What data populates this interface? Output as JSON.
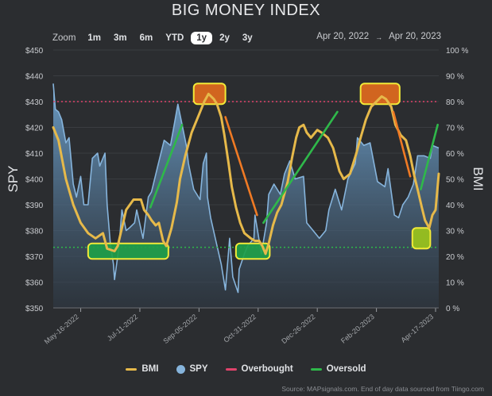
{
  "title": "BIG MONEY INDEX",
  "zoom": {
    "label": "Zoom",
    "buttons": [
      "1m",
      "3m",
      "6m",
      "YTD",
      "1y",
      "2y",
      "3y"
    ],
    "active": "1y"
  },
  "range": {
    "from": "Apr 20, 2022",
    "arrow": "→",
    "to": "Apr 20, 2023"
  },
  "legend": [
    {
      "label": "BMI",
      "color": "#e6b94a",
      "shape": "line"
    },
    {
      "label": "SPY",
      "color": "#86b4dc",
      "shape": "dot"
    },
    {
      "label": "Overbought",
      "color": "#e0436b",
      "shape": "line"
    },
    {
      "label": "Oversold",
      "color": "#2fb84a",
      "shape": "line"
    }
  ],
  "source": "Source: MAPsignals.com. End of day data sourced from Tiingo.com",
  "colors": {
    "bmi": "#e6b94a",
    "spy_fill": "#6fa3cf",
    "spy_line": "#86b4dc",
    "overbought": "#e0436b",
    "oversold": "#2fb84a",
    "annot_orange": "#e06a1e",
    "annot_green": "#1fa04a",
    "annot_lime": "#9bc41c",
    "annot_border": "#f2ea38",
    "trend_green": "#2fb84a",
    "trend_orange": "#f07a24"
  },
  "chart_data": {
    "type": "line",
    "title": "BIG MONEY INDEX",
    "x_range": [
      "2022-04-20",
      "2023-04-20"
    ],
    "x_ticks": [
      "May-16-2022",
      "Jul-11-2022",
      "Sep-05-2022",
      "Oct-31-2022",
      "Dec-26-2022",
      "Feb-20-2023",
      "Apr-17-2023"
    ],
    "left_axis": {
      "label": "SPY",
      "range": [
        350,
        450
      ],
      "ticks": [
        "$350",
        "$360",
        "$370",
        "$380",
        "$390",
        "$400",
        "$410",
        "$420",
        "$430",
        "$440",
        "$450"
      ]
    },
    "right_axis": {
      "label": "BMI",
      "range": [
        0,
        100
      ],
      "ticks": [
        "0 %",
        "10 %",
        "20 %",
        "30 %",
        "40 %",
        "50 %",
        "60 %",
        "70 %",
        "80 %",
        "90 %",
        "100 %"
      ]
    },
    "reference_lines": [
      {
        "name": "Overbought",
        "value": 80
      },
      {
        "name": "Oversold",
        "value": 23.5
      }
    ],
    "series": [
      {
        "name": "SPY",
        "axis": "left",
        "points": [
          [
            "2022-04-20",
            437
          ],
          [
            "2022-04-22",
            427
          ],
          [
            "2022-04-25",
            426
          ],
          [
            "2022-04-28",
            423
          ],
          [
            "2022-05-02",
            414
          ],
          [
            "2022-05-05",
            416
          ],
          [
            "2022-05-09",
            398
          ],
          [
            "2022-05-12",
            393
          ],
          [
            "2022-05-16",
            401
          ],
          [
            "2022-05-19",
            390
          ],
          [
            "2022-05-23",
            390
          ],
          [
            "2022-05-27",
            408
          ],
          [
            "2022-06-01",
            410
          ],
          [
            "2022-06-03",
            405
          ],
          [
            "2022-06-08",
            410
          ],
          [
            "2022-06-10",
            390
          ],
          [
            "2022-06-13",
            375
          ],
          [
            "2022-06-16",
            367
          ],
          [
            "2022-06-17",
            361
          ],
          [
            "2022-06-21",
            373
          ],
          [
            "2022-06-24",
            388
          ],
          [
            "2022-06-28",
            380
          ],
          [
            "2022-07-01",
            381
          ],
          [
            "2022-07-06",
            383
          ],
          [
            "2022-07-08",
            388
          ],
          [
            "2022-07-14",
            377
          ],
          [
            "2022-07-19",
            393
          ],
          [
            "2022-07-22",
            395
          ],
          [
            "2022-07-28",
            405
          ],
          [
            "2022-08-03",
            415
          ],
          [
            "2022-08-09",
            413
          ],
          [
            "2022-08-16",
            429
          ],
          [
            "2022-08-19",
            423
          ],
          [
            "2022-08-24",
            413
          ],
          [
            "2022-08-26",
            406
          ],
          [
            "2022-08-31",
            396
          ],
          [
            "2022-09-06",
            392
          ],
          [
            "2022-09-09",
            406
          ],
          [
            "2022-09-12",
            410
          ],
          [
            "2022-09-13",
            393
          ],
          [
            "2022-09-16",
            385
          ],
          [
            "2022-09-21",
            376
          ],
          [
            "2022-09-26",
            367
          ],
          [
            "2022-09-30",
            357
          ],
          [
            "2022-10-04",
            377
          ],
          [
            "2022-10-07",
            362
          ],
          [
            "2022-10-12",
            356
          ],
          [
            "2022-10-13",
            365
          ],
          [
            "2022-10-18",
            371
          ],
          [
            "2022-10-21",
            374
          ],
          [
            "2022-10-27",
            377
          ],
          [
            "2022-10-28",
            386
          ],
          [
            "2022-11-03",
            371
          ],
          [
            "2022-11-08",
            383
          ],
          [
            "2022-11-10",
            394
          ],
          [
            "2022-11-15",
            398
          ],
          [
            "2022-11-21",
            394
          ],
          [
            "2022-11-25",
            402
          ],
          [
            "2022-11-30",
            407
          ],
          [
            "2022-12-05",
            400
          ],
          [
            "2022-12-13",
            401
          ],
          [
            "2022-12-16",
            383
          ],
          [
            "2022-12-22",
            380
          ],
          [
            "2022-12-28",
            377
          ],
          [
            "2023-01-03",
            380
          ],
          [
            "2023-01-06",
            388
          ],
          [
            "2023-01-12",
            396
          ],
          [
            "2023-01-18",
            388
          ],
          [
            "2023-01-24",
            400
          ],
          [
            "2023-01-31",
            406
          ],
          [
            "2023-02-02",
            416
          ],
          [
            "2023-02-08",
            413
          ],
          [
            "2023-02-14",
            414
          ],
          [
            "2023-02-21",
            399
          ],
          [
            "2023-02-28",
            397
          ],
          [
            "2023-03-03",
            404
          ],
          [
            "2023-03-09",
            386
          ],
          [
            "2023-03-13",
            385
          ],
          [
            "2023-03-17",
            390
          ],
          [
            "2023-03-22",
            393
          ],
          [
            "2023-03-27",
            398
          ],
          [
            "2023-03-31",
            409
          ],
          [
            "2023-04-06",
            409
          ],
          [
            "2023-04-12",
            408
          ],
          [
            "2023-04-14",
            413
          ],
          [
            "2023-04-20",
            412
          ]
        ]
      },
      {
        "name": "BMI",
        "axis": "right",
        "points": [
          [
            "2022-04-20",
            70
          ],
          [
            "2022-04-25",
            65
          ],
          [
            "2022-05-02",
            50
          ],
          [
            "2022-05-09",
            40
          ],
          [
            "2022-05-16",
            33
          ],
          [
            "2022-05-23",
            29
          ],
          [
            "2022-05-30",
            27
          ],
          [
            "2022-06-06",
            29
          ],
          [
            "2022-06-10",
            23
          ],
          [
            "2022-06-17",
            22
          ],
          [
            "2022-06-20",
            24
          ],
          [
            "2022-06-24",
            31
          ],
          [
            "2022-06-28",
            38
          ],
          [
            "2022-07-05",
            42
          ],
          [
            "2022-07-12",
            42
          ],
          [
            "2022-07-15",
            38
          ],
          [
            "2022-07-19",
            36
          ],
          [
            "2022-07-22",
            34
          ],
          [
            "2022-07-26",
            32
          ],
          [
            "2022-07-29",
            33
          ],
          [
            "2022-08-02",
            26
          ],
          [
            "2022-08-05",
            24
          ],
          [
            "2022-08-10",
            31
          ],
          [
            "2022-08-15",
            41
          ],
          [
            "2022-08-18",
            50
          ],
          [
            "2022-08-23",
            59
          ],
          [
            "2022-08-29",
            68
          ],
          [
            "2022-09-05",
            75
          ],
          [
            "2022-09-10",
            80
          ],
          [
            "2022-09-14",
            83
          ],
          [
            "2022-09-19",
            81
          ],
          [
            "2022-09-22",
            79
          ],
          [
            "2022-09-26",
            74
          ],
          [
            "2022-09-29",
            67
          ],
          [
            "2022-10-03",
            56
          ],
          [
            "2022-10-06",
            47
          ],
          [
            "2022-10-10",
            39
          ],
          [
            "2022-10-14",
            33
          ],
          [
            "2022-10-18",
            29
          ],
          [
            "2022-10-24",
            27
          ],
          [
            "2022-10-28",
            26
          ],
          [
            "2022-11-01",
            26
          ],
          [
            "2022-11-04",
            24
          ],
          [
            "2022-11-07",
            21
          ],
          [
            "2022-11-10",
            25
          ],
          [
            "2022-11-14",
            32
          ],
          [
            "2022-11-18",
            37
          ],
          [
            "2022-11-22",
            40
          ],
          [
            "2022-11-28",
            49
          ],
          [
            "2022-12-02",
            58
          ],
          [
            "2022-12-06",
            66
          ],
          [
            "2022-12-09",
            70
          ],
          [
            "2022-12-13",
            71
          ],
          [
            "2022-12-16",
            68
          ],
          [
            "2022-12-20",
            66
          ],
          [
            "2022-12-26",
            69
          ],
          [
            "2022-12-30",
            68
          ],
          [
            "2023-01-05",
            66
          ],
          [
            "2023-01-10",
            62
          ],
          [
            "2023-01-16",
            53
          ],
          [
            "2023-01-20",
            50
          ],
          [
            "2023-01-26",
            52
          ],
          [
            "2023-02-01",
            60
          ],
          [
            "2023-02-05",
            66
          ],
          [
            "2023-02-10",
            73
          ],
          [
            "2023-02-15",
            78
          ],
          [
            "2023-02-20",
            80
          ],
          [
            "2023-02-25",
            82
          ],
          [
            "2023-03-01",
            81
          ],
          [
            "2023-03-06",
            78
          ],
          [
            "2023-03-10",
            71
          ],
          [
            "2023-03-15",
            67
          ],
          [
            "2023-03-20",
            65
          ],
          [
            "2023-03-24",
            59
          ],
          [
            "2023-03-28",
            51
          ],
          [
            "2023-03-31",
            46
          ],
          [
            "2023-04-04",
            39
          ],
          [
            "2023-04-07",
            34
          ],
          [
            "2023-04-11",
            31
          ],
          [
            "2023-04-14",
            36
          ],
          [
            "2023-04-17",
            38
          ],
          [
            "2023-04-20",
            52
          ]
        ]
      }
    ],
    "annotations": [
      {
        "kind": "box",
        "tone": "green",
        "x": [
          "2022-05-23",
          "2022-08-07"
        ],
        "y": [
          19,
          25
        ]
      },
      {
        "kind": "box",
        "tone": "orange",
        "x": [
          "2022-08-31",
          "2022-09-30"
        ],
        "y": [
          79,
          87
        ]
      },
      {
        "kind": "box",
        "tone": "green",
        "x": [
          "2022-10-10",
          "2022-11-11"
        ],
        "y": [
          19,
          25
        ]
      },
      {
        "kind": "box",
        "tone": "orange",
        "x": [
          "2023-02-05",
          "2023-03-14"
        ],
        "y": [
          79,
          87
        ]
      },
      {
        "kind": "box",
        "tone": "lime",
        "x": [
          "2023-03-26",
          "2023-04-12"
        ],
        "y": [
          23,
          31
        ]
      },
      {
        "kind": "arrow",
        "tone": "green",
        "from": [
          "2022-07-21",
          39
        ],
        "to": [
          "2022-08-20",
          71
        ]
      },
      {
        "kind": "arrow",
        "tone": "orange",
        "from": [
          "2022-09-30",
          74
        ],
        "to": [
          "2022-10-30",
          36
        ]
      },
      {
        "kind": "arrow",
        "tone": "green",
        "from": [
          "2022-11-05",
          33
        ],
        "to": [
          "2023-01-14",
          76
        ]
      },
      {
        "kind": "arrow",
        "tone": "orange",
        "from": [
          "2023-03-08",
          76
        ],
        "to": [
          "2023-03-24",
          51
        ]
      },
      {
        "kind": "arrow",
        "tone": "green",
        "from": [
          "2023-04-03",
          46
        ],
        "to": [
          "2023-04-19",
          71
        ]
      }
    ]
  }
}
